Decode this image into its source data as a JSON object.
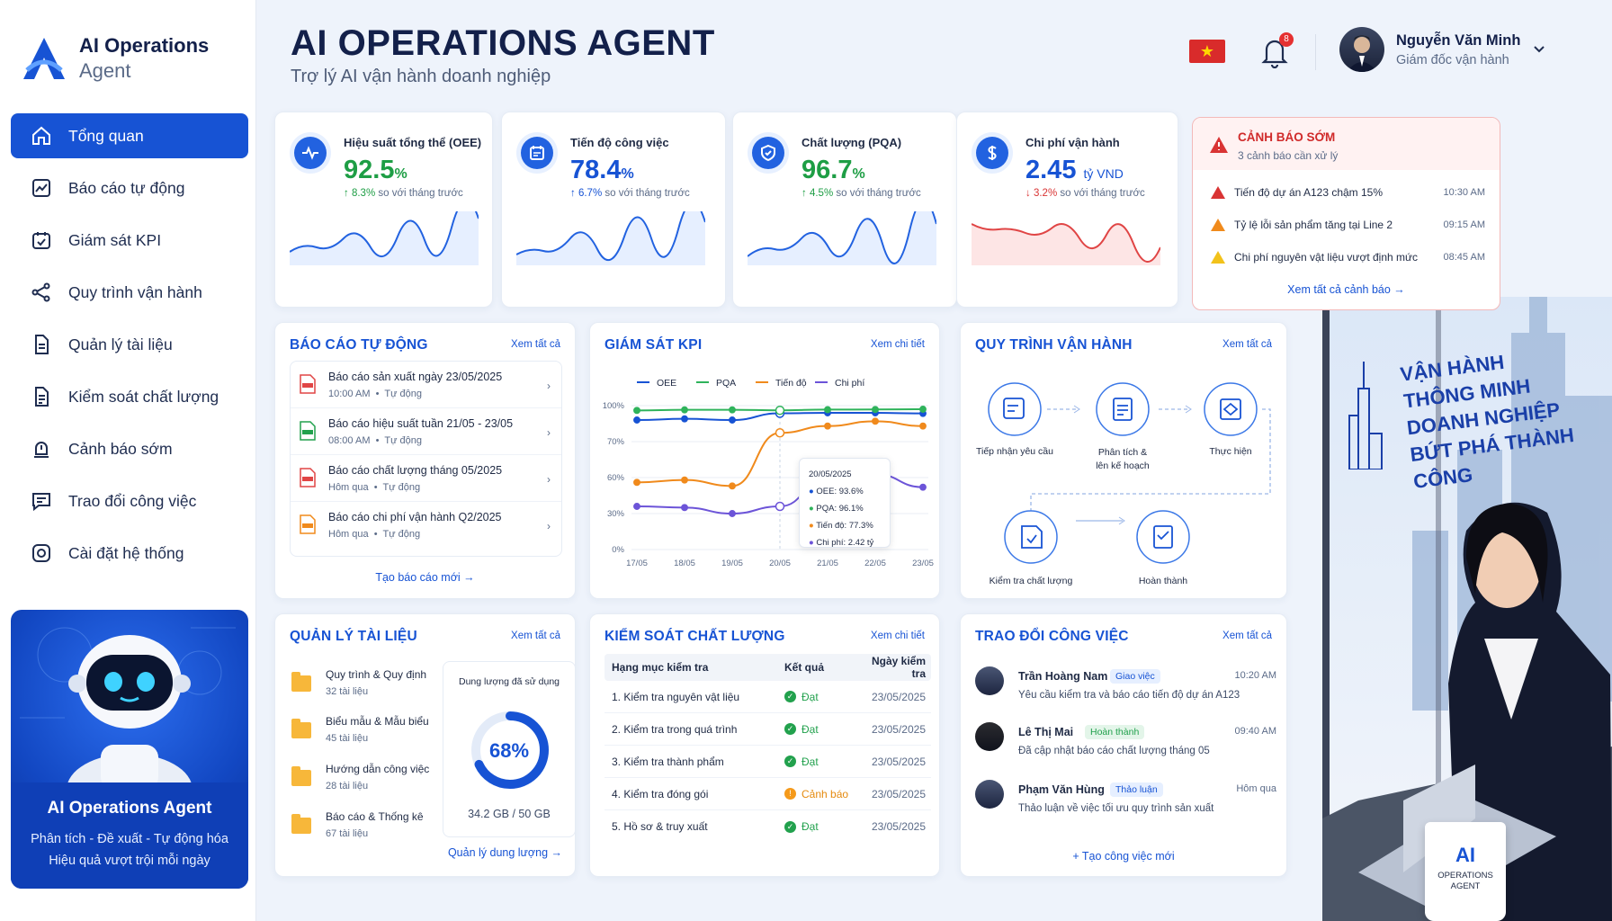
{
  "app": {
    "name_line1": "AI Operations",
    "name_line2": "Agent"
  },
  "header": {
    "title": "AI OPERATIONS AGENT",
    "subtitle": "Trợ lý AI vận hành doanh nghiệp",
    "notification_count": "8"
  },
  "user": {
    "name": "Nguyễn Văn Minh",
    "role": "Giám đốc vận hành"
  },
  "nav": [
    {
      "label": "Tổng quan",
      "icon": "home-icon",
      "active": true
    },
    {
      "label": "Báo cáo tự động",
      "icon": "chart-icon"
    },
    {
      "label": "Giám sát KPI",
      "icon": "monitor-icon"
    },
    {
      "label": "Quy trình vận hành",
      "icon": "share-icon"
    },
    {
      "label": "Quản lý tài liệu",
      "icon": "document-icon"
    },
    {
      "label": "Kiểm soát chất lượng",
      "icon": "checklist-icon"
    },
    {
      "label": "Cảnh báo sớm",
      "icon": "alarm-icon"
    },
    {
      "label": "Trao đổi công việc",
      "icon": "chat-icon"
    },
    {
      "label": "Cài đặt hệ thống",
      "icon": "settings-icon"
    }
  ],
  "promo": {
    "title": "AI Operations Agent",
    "line1": "Phân tích - Đề xuất - Tự động hóa",
    "line2": "Hiệu quả vượt trội mỗi ngày"
  },
  "kpis": [
    {
      "label": "Hiệu suất tổng thể (OEE)",
      "value": "92.5",
      "unit": "%",
      "change": "8.3%",
      "change_text": "so với tháng trước",
      "direction": "up",
      "color": "#1e9e45",
      "icon": "pulse-icon"
    },
    {
      "label": "Tiến độ công việc",
      "value": "78.4",
      "unit": "%",
      "change": "6.7%",
      "change_text": "so với tháng trước",
      "direction": "up",
      "color": "#1753d4",
      "icon": "calendar-icon"
    },
    {
      "label": "Chất lượng (PQA)",
      "value": "96.7",
      "unit": "%",
      "change": "4.5%",
      "change_text": "so với tháng trước",
      "direction": "up",
      "color": "#1e9e45",
      "icon": "shield-check-icon"
    },
    {
      "label": "Chi phí vận hành",
      "value": "2.45",
      "unit": "tỷ VND",
      "change": "3.2%",
      "change_text": "so với tháng trước",
      "direction": "down",
      "color": "#1753d4",
      "icon": "dollar-icon"
    }
  ],
  "alerts": {
    "title": "CẢNH BÁO SỚM",
    "count_text": "3 cảnh báo cần xử lý",
    "items": [
      {
        "text": "Tiến độ dự án A123 chậm 15%",
        "time": "10:30 AM",
        "level": "#d93434"
      },
      {
        "text": "Tỷ lệ lỗi sản phẩm tăng tại Line 2",
        "time": "09:15 AM",
        "level": "#f08a1c"
      },
      {
        "text": "Chi phí nguyên vật liệu vượt định mức",
        "time": "08:45 AM",
        "level": "#f2c21b"
      }
    ],
    "link": "Xem tất cả cảnh báo"
  },
  "reports": {
    "title": "BÁO CÁO TỰ ĐỘNG",
    "link": "Xem tất cả",
    "items": [
      {
        "title": "Báo cáo sản xuất ngày 23/05/2025",
        "time": "10:00 AM",
        "type": "Tự động",
        "file": "PDF"
      },
      {
        "title": "Báo cáo hiệu suất tuần 21/05 - 23/05",
        "time": "08:00 AM",
        "type": "Tự động",
        "file": "XLSX"
      },
      {
        "title": "Báo cáo chất lượng tháng 05/2025",
        "time": "Hôm qua",
        "type": "Tự động",
        "file": "PDF"
      },
      {
        "title": "Báo cáo chi phí vận hành Q2/2025",
        "time": "Hôm qua",
        "type": "Tự động",
        "file": "PPTX"
      }
    ],
    "create": "Tạo báo cáo mới"
  },
  "kpi_monitor": {
    "title": "GIÁM SÁT KPI",
    "link": "Xem chi tiết",
    "tooltip": {
      "date": "20/05/2025",
      "oee": "OEE: 93.6%",
      "pqa": "PQA: 96.1%",
      "progress": "Tiến độ: 77.3%",
      "cost": "Chi phí: 2.42 tỷ"
    }
  },
  "chart_data": {
    "type": "line",
    "categories": [
      "17/05",
      "18/05",
      "19/05",
      "20/05",
      "21/05",
      "22/05",
      "23/05"
    ],
    "y_ticks": [
      "100%",
      "70%",
      "60%",
      "30%",
      "0%"
    ],
    "grid": true,
    "legend_position": "top",
    "series": [
      {
        "name": "OEE",
        "color": "#1753d4",
        "values": [
          88,
          89,
          88,
          93.6,
          94,
          94,
          93.5
        ]
      },
      {
        "name": "PQA",
        "color": "#2fb35b",
        "values": [
          96,
          96.5,
          96.5,
          96.1,
          96.7,
          96.8,
          97
        ]
      },
      {
        "name": "Tiến độ",
        "color": "#f08a1c",
        "values": [
          56,
          58,
          53,
          77.3,
          83,
          87,
          83
        ]
      },
      {
        "name": "Chi phí",
        "color": "#6c54d8",
        "values": [
          36,
          35,
          30,
          36,
          60,
          61,
          52
        ]
      }
    ]
  },
  "workflow": {
    "title": "QUY TRÌNH VẬN HÀNH",
    "link": "Xem tất cả",
    "steps": [
      "Tiếp nhận yêu cầu",
      "Phân tích &",
      "lên kế hoạch",
      "Thực hiện",
      "Kiểm tra chất lượng",
      "Hoàn thành"
    ]
  },
  "docs": {
    "title": "QUẢN LÝ TÀI LIỆU",
    "link": "Xem tất cả",
    "items": [
      {
        "name": "Quy trình & Quy định",
        "count": "32 tài liệu"
      },
      {
        "name": "Biểu mẫu & Mẫu biểu",
        "count": "45 tài liệu"
      },
      {
        "name": "Hướng dẫn công việc",
        "count": "28 tài liệu"
      },
      {
        "name": "Báo cáo & Thống kê",
        "count": "67 tài liệu"
      }
    ],
    "storage_label": "Dung lượng đã sử dụng",
    "storage_percent": "68%",
    "storage_fraction": 0.68,
    "storage_text": "34.2 GB / 50 GB",
    "manage": "Quản lý dung lượng"
  },
  "qc": {
    "title": "KIỂM SOÁT CHẤT LƯỢNG",
    "link": "Xem chi tiết",
    "headers": [
      "Hạng mục kiểm tra",
      "Kết quả",
      "Ngày kiểm tra"
    ],
    "rows": [
      {
        "item": "1. Kiểm tra nguyên vật liệu",
        "result": "Đạt",
        "date": "23/05/2025"
      },
      {
        "item": "2. Kiểm tra trong quá trình",
        "result": "Đạt",
        "date": "23/05/2025"
      },
      {
        "item": "3. Kiểm tra thành phẩm",
        "result": "Đạt",
        "date": "23/05/2025"
      },
      {
        "item": "4. Kiểm tra đóng gói",
        "result": "Cảnh báo",
        "date": "23/05/2025"
      },
      {
        "item": "5. Hồ sơ & truy xuất",
        "result": "Đạt",
        "date": "23/05/2025"
      }
    ]
  },
  "messages": {
    "title": "TRAO ĐỔI CÔNG VIỆC",
    "link": "Xem tất cả",
    "items": [
      {
        "name": "Trần Hoàng Nam",
        "tag": "Giao việc",
        "time": "10:20 AM",
        "text": "Yêu cầu kiểm tra và báo cáo tiến độ dự án A123"
      },
      {
        "name": "Lê Thị Mai",
        "tag": "Hoàn thành",
        "time": "09:40 AM",
        "text": "Đã cập nhật báo cáo chất lượng tháng 05"
      },
      {
        "name": "Phạm Văn Hùng",
        "tag": "Thảo luận",
        "time": "Hôm qua",
        "text": "Thảo luận về việc tối ưu quy trình sản xuất"
      }
    ],
    "create": "Tạo công việc mới"
  },
  "slogan": [
    "VẬN HÀNH",
    "THÔNG MINH",
    "DOANH NGHIỆP",
    "BỨT PHÁ THÀNH CÔNG"
  ],
  "mug": {
    "logo": "AI",
    "line1": "OPERATIONS",
    "line2": "AGENT"
  }
}
